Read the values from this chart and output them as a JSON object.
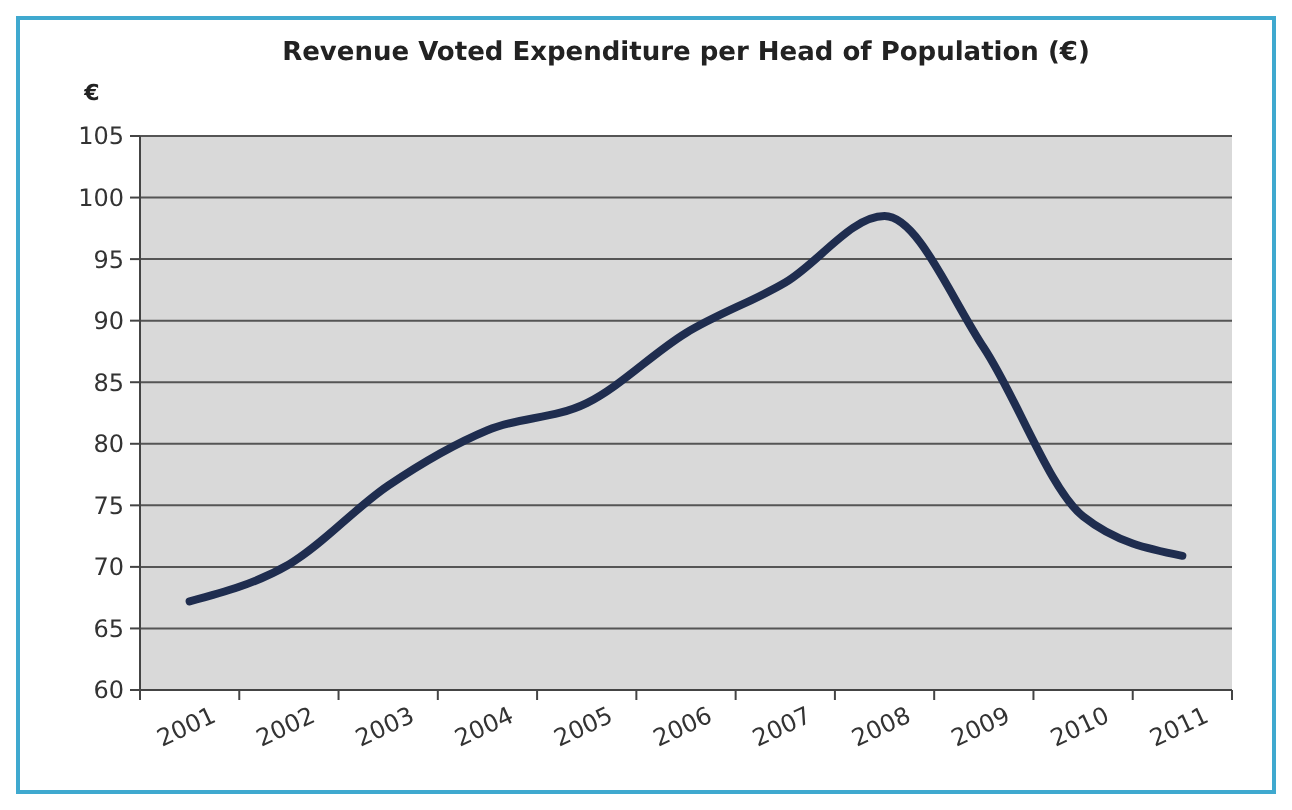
{
  "chart_data": {
    "type": "line",
    "title": "Revenue Voted Expenditure per Head of Population (€)",
    "ylabel": "€",
    "categories": [
      "2001",
      "2002",
      "2003",
      "2004",
      "2005",
      "2006",
      "2007",
      "2008",
      "2009",
      "2010",
      "2011"
    ],
    "series": [
      {
        "color": "#1f2d4f",
        "values": [
          67.2,
          70.2,
          76.6,
          81.1,
          83.3,
          89.0,
          93.1,
          98.5,
          87.8,
          74.1,
          70.9
        ]
      }
    ],
    "ylim": [
      60,
      105
    ],
    "yticks": [
      60,
      65,
      70,
      75,
      80,
      85,
      90,
      95,
      100,
      105
    ],
    "grid": "y",
    "marker": "none",
    "line_style": "solid"
  }
}
